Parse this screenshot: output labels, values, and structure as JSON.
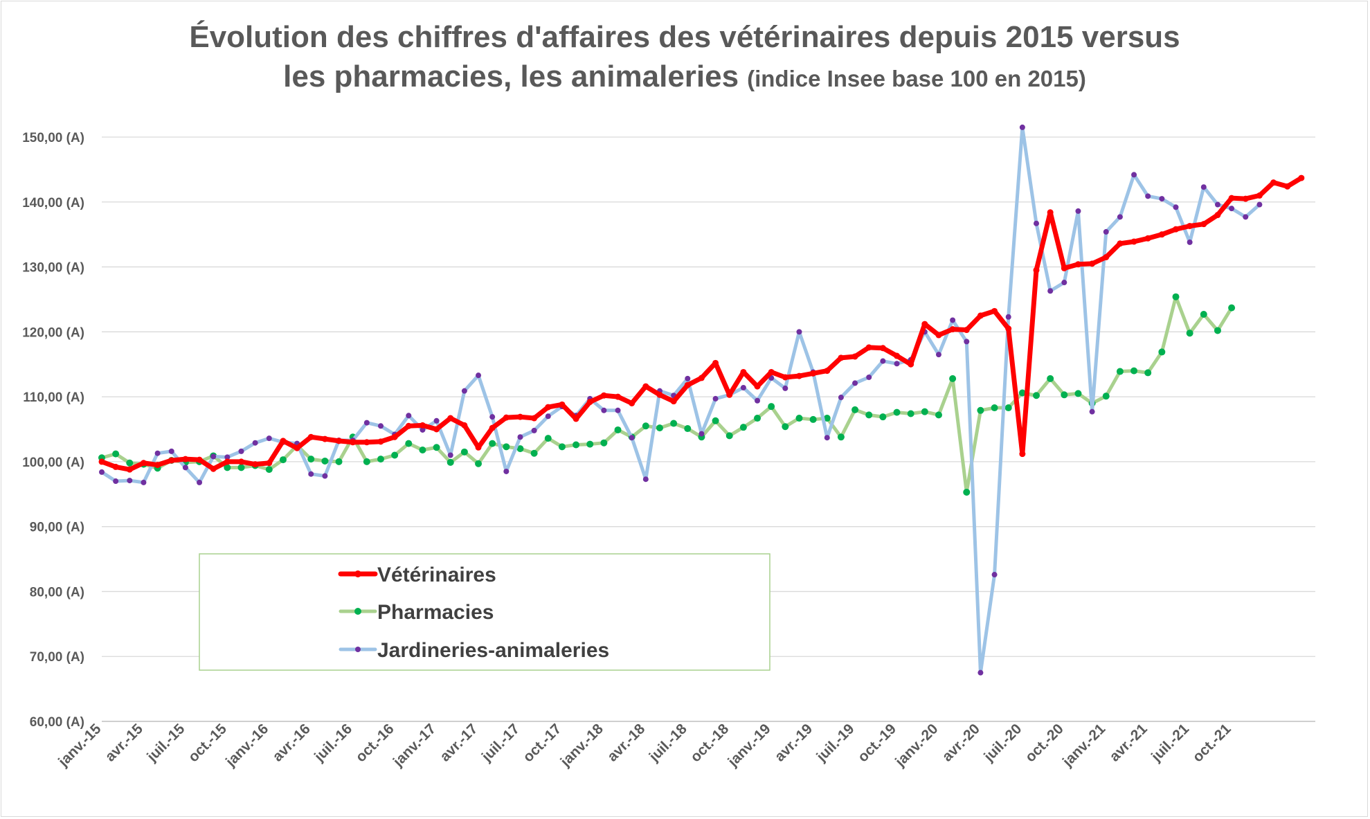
{
  "chart_data": {
    "type": "line",
    "title_line1": "Évolution des chiffres d'affaires des vétérinaires depuis 2015 versus",
    "title_line2_main": "les pharmacies, les animaleries",
    "title_line2_note": "(indice Insee base 100 en 2015)",
    "ylim": [
      60,
      150
    ],
    "yticks": [
      {
        "value": 150,
        "label": "150,00 (A)"
      },
      {
        "value": 140,
        "label": "140,00 (A)"
      },
      {
        "value": 130,
        "label": "130,00 (A)"
      },
      {
        "value": 120,
        "label": "120,00 (A)"
      },
      {
        "value": 110,
        "label": "110,00 (A)"
      },
      {
        "value": 100,
        "label": "100,00 (A)"
      },
      {
        "value": 90,
        "label": "90,00 (A)"
      },
      {
        "value": 80,
        "label": "80,00 (A)"
      },
      {
        "value": 70,
        "label": "70,00 (A)"
      },
      {
        "value": 60,
        "label": "60,00 (A)"
      }
    ],
    "x_tick_labels": [
      "janv.-15",
      "avr.-15",
      "juil.-15",
      "oct.-15",
      "janv.-16",
      "avr.-16",
      "juil.-16",
      "oct.-16",
      "janv.-17",
      "avr.-17",
      "juil.-17",
      "oct.-17",
      "janv.-18",
      "avr.-18",
      "juil.-18",
      "oct.-18",
      "janv.-19",
      "avr.-19",
      "juil.-19",
      "oct.-19",
      "janv.-20",
      "avr.-20",
      "juil.-20",
      "oct.-20",
      "janv.-21",
      "avr.-21",
      "juil.-21",
      "oct.-21"
    ],
    "grid": true,
    "legend_position": "bottom-left inside plot",
    "series": [
      {
        "name": "Vétérinaires",
        "color": "#ff0000",
        "values": [
          100.0,
          99.2,
          98.8,
          99.8,
          99.5,
          100.2,
          100.4,
          100.3,
          98.9,
          100.0,
          100.0,
          99.6,
          99.8,
          103.2,
          102.1,
          103.8,
          103.5,
          103.2,
          103.0,
          103.0,
          103.1,
          103.8,
          105.5,
          105.6,
          105.0,
          106.7,
          105.6,
          102.2,
          105.2,
          106.8,
          106.9,
          106.7,
          108.4,
          108.8,
          106.6,
          109.2,
          110.2,
          110.0,
          109.0,
          111.6,
          110.3,
          109.3,
          111.8,
          112.9,
          115.2,
          110.3,
          113.8,
          111.6,
          113.8,
          113.0,
          113.2,
          113.6,
          114.0,
          116.0,
          116.2,
          117.6,
          117.5,
          116.3,
          115.0,
          121.2,
          119.5,
          120.4,
          120.3,
          122.5,
          123.2,
          120.5,
          101.2,
          129.5,
          138.4,
          129.8,
          130.4,
          130.5,
          131.5,
          133.6,
          133.9,
          134.4,
          135.0,
          135.8,
          136.3,
          136.6,
          138.0,
          140.6,
          140.5,
          141.0,
          143.0,
          142.4,
          143.7
        ]
      },
      {
        "name": "Pharmacies",
        "color": "#a9d18e",
        "marker_color": "#00b050",
        "values": [
          100.6,
          101.2,
          99.8,
          99.6,
          99.0,
          100.2,
          99.9,
          100.0,
          100.9,
          99.1,
          99.1,
          99.4,
          98.8,
          100.3,
          102.5,
          100.4,
          100.1,
          100.0,
          103.8,
          100.0,
          100.4,
          101.0,
          102.8,
          101.8,
          102.2,
          99.9,
          101.5,
          99.7,
          102.8,
          102.3,
          102.0,
          101.3,
          103.6,
          102.3,
          102.6,
          102.7,
          102.9,
          104.9,
          103.8,
          105.5,
          105.2,
          105.9,
          105.1,
          103.8,
          106.3,
          104.0,
          105.3,
          106.7,
          108.5,
          105.4,
          106.7,
          106.5,
          106.7,
          103.8,
          108.0,
          107.2,
          106.9,
          107.6,
          107.4,
          107.7,
          107.2,
          112.8,
          95.3,
          107.9,
          108.3,
          108.3,
          110.6,
          110.2,
          112.8,
          110.3,
          110.5,
          109.0,
          110.1,
          113.9,
          114.0,
          113.7,
          116.9,
          125.4,
          119.8,
          122.7,
          120.2,
          123.7
        ]
      },
      {
        "name": "Jardineries-animaleries",
        "color": "#9dc3e6",
        "marker_color": "#7030a0",
        "values": [
          98.4,
          97.0,
          97.1,
          96.8,
          101.3,
          101.6,
          99.1,
          96.8,
          100.8,
          100.7,
          101.6,
          102.9,
          103.6,
          103.0,
          102.8,
          98.1,
          97.8,
          103.3,
          103.3,
          106.0,
          105.5,
          104.2,
          107.1,
          104.9,
          106.3,
          101.0,
          110.9,
          113.3,
          106.9,
          98.5,
          103.8,
          104.8,
          107.0,
          108.5,
          107.1,
          109.7,
          107.9,
          107.9,
          103.7,
          97.3,
          110.9,
          110.2,
          112.8,
          104.3,
          109.7,
          110.3,
          111.4,
          109.4,
          112.9,
          111.3,
          120.0,
          113.8,
          103.7,
          109.9,
          112.1,
          113.0,
          115.5,
          115.1,
          115.7,
          120.0,
          116.5,
          121.8,
          118.5,
          67.5,
          82.6,
          122.3,
          151.5,
          136.7,
          126.3,
          127.6,
          138.6,
          107.7,
          135.4,
          137.7,
          144.2,
          140.9,
          140.5,
          139.2,
          133.8,
          142.3,
          139.6,
          139.0,
          137.7,
          139.6
        ]
      }
    ]
  }
}
